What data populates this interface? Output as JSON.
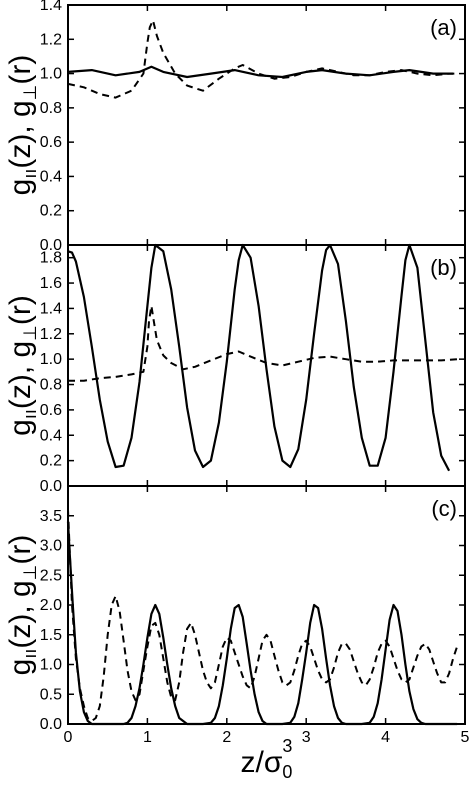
{
  "chart_data": {
    "type": "line",
    "x_axis": {
      "label_main": "z/σ",
      "label_sub": "0",
      "label_sup": "3",
      "range": [
        0,
        5
      ],
      "ticks": [
        "0",
        "1",
        "2",
        "3",
        "4",
        "5"
      ]
    },
    "y_axis_label": {
      "g_par": "g",
      "par_sub": "ıı",
      "z_part": "(z), g",
      "perp_sub": "⊥",
      "r_part": "(r)"
    },
    "panels": [
      {
        "label": "(a)",
        "ylim": [
          0,
          1.4
        ],
        "yticks": [
          "0.0",
          "0.2",
          "0.4",
          "0.6",
          "0.8",
          "1.0",
          "1.2",
          "1.4"
        ],
        "series": [
          {
            "style": "solid",
            "x": [
              0,
              0.3,
              0.6,
              0.9,
              1.05,
              1.2,
              1.5,
              1.8,
              2.1,
              2.4,
              2.7,
              3.0,
              3.2,
              3.5,
              3.8,
              4.1,
              4.3,
              4.6,
              4.85
            ],
            "y": [
              1.01,
              1.02,
              0.99,
              1.01,
              1.04,
              1.01,
              0.98,
              1.0,
              1.02,
              0.99,
              0.98,
              1.01,
              1.02,
              1.0,
              0.99,
              1.01,
              1.02,
              1.0,
              1.0
            ]
          },
          {
            "style": "dashed",
            "x": [
              0,
              0.2,
              0.4,
              0.6,
              0.8,
              0.95,
              1.0,
              1.03,
              1.07,
              1.12,
              1.2,
              1.35,
              1.5,
              1.7,
              1.9,
              2.1,
              2.2,
              2.4,
              2.6,
              2.8,
              3.0,
              3.2,
              3.4,
              3.6,
              3.8,
              4.0,
              4.2,
              4.4,
              4.6,
              4.8,
              4.9
            ],
            "y": [
              0.94,
              0.92,
              0.88,
              0.86,
              0.9,
              1.0,
              1.18,
              1.27,
              1.31,
              1.22,
              1.12,
              1.0,
              0.93,
              0.9,
              0.97,
              1.03,
              1.05,
              1.0,
              0.97,
              0.98,
              1.01,
              1.03,
              1.01,
              0.99,
              0.99,
              1.01,
              1.02,
              1.0,
              0.99,
              1.0,
              1.0
            ]
          }
        ]
      },
      {
        "label": "(b)",
        "ylim": [
          0,
          1.9
        ],
        "yticks": [
          "0.0",
          "0.2",
          "0.4",
          "0.6",
          "0.8",
          "1.0",
          "1.2",
          "1.4",
          "1.6",
          "1.8"
        ],
        "series": [
          {
            "style": "solid",
            "x": [
              0,
              0.05,
              0.1,
              0.2,
              0.3,
              0.4,
              0.5,
              0.6,
              0.7,
              0.8,
              0.9,
              1.0,
              1.05,
              1.1,
              1.2,
              1.3,
              1.4,
              1.5,
              1.6,
              1.7,
              1.8,
              1.9,
              2.0,
              2.1,
              2.15,
              2.2,
              2.3,
              2.4,
              2.5,
              2.6,
              2.7,
              2.8,
              2.9,
              3.0,
              3.1,
              3.2,
              3.25,
              3.3,
              3.4,
              3.5,
              3.6,
              3.7,
              3.8,
              3.9,
              4.0,
              4.1,
              4.2,
              4.25,
              4.3,
              4.4,
              4.5,
              4.6,
              4.7,
              4.8
            ],
            "y": [
              1.85,
              1.84,
              1.77,
              1.49,
              1.1,
              0.68,
              0.35,
              0.15,
              0.16,
              0.38,
              0.82,
              1.42,
              1.72,
              1.9,
              1.85,
              1.55,
              1.1,
              0.62,
              0.28,
              0.15,
              0.2,
              0.5,
              0.98,
              1.55,
              1.78,
              1.9,
              1.8,
              1.42,
              0.92,
              0.47,
              0.2,
              0.15,
              0.29,
              0.68,
              1.2,
              1.7,
              1.86,
              1.9,
              1.75,
              1.3,
              0.78,
              0.38,
              0.16,
              0.16,
              0.38,
              0.9,
              1.5,
              1.78,
              1.9,
              1.72,
              1.15,
              0.58,
              0.24,
              0.12
            ]
          },
          {
            "style": "dashed",
            "x": [
              0,
              0.2,
              0.4,
              0.6,
              0.8,
              0.95,
              1.0,
              1.02,
              1.05,
              1.08,
              1.12,
              1.2,
              1.3,
              1.45,
              1.6,
              1.8,
              2.0,
              2.15,
              2.3,
              2.5,
              2.7,
              2.9,
              3.1,
              3.3,
              3.5,
              3.7,
              3.9,
              4.1,
              4.3,
              4.5,
              4.7,
              4.9
            ],
            "y": [
              0.83,
              0.83,
              0.85,
              0.86,
              0.88,
              0.9,
              1.1,
              1.3,
              1.42,
              1.3,
              1.15,
              1.03,
              0.97,
              0.92,
              0.94,
              0.99,
              1.04,
              1.06,
              1.02,
              0.97,
              0.95,
              0.98,
              1.01,
              1.02,
              1.0,
              0.98,
              0.98,
              0.99,
              0.99,
              0.99,
              0.99,
              1.0
            ]
          }
        ]
      },
      {
        "label": "(c)",
        "ylim": [
          0,
          4.0
        ],
        "yticks": [
          "0.0",
          "0.5",
          "1.0",
          "1.5",
          "2.0",
          "2.5",
          "3.0",
          "3.5"
        ],
        "series": [
          {
            "style": "solid",
            "x": [
              0,
              0.02,
              0.06,
              0.1,
              0.15,
              0.2,
              0.25,
              0.3,
              0.35,
              0.4,
              0.5,
              0.6,
              0.7,
              0.75,
              0.8,
              0.85,
              0.9,
              0.95,
              1.0,
              1.05,
              1.1,
              1.15,
              1.2,
              1.25,
              1.3,
              1.35,
              1.4,
              1.5,
              1.6,
              1.7,
              1.8,
              1.85,
              1.9,
              1.95,
              2.0,
              2.05,
              2.1,
              2.15,
              2.2,
              2.25,
              2.3,
              2.35,
              2.4,
              2.45,
              2.5,
              2.6,
              2.7,
              2.8,
              2.85,
              2.9,
              2.95,
              3.0,
              3.05,
              3.1,
              3.15,
              3.2,
              3.25,
              3.3,
              3.35,
              3.4,
              3.45,
              3.5,
              3.6,
              3.7,
              3.8,
              3.85,
              3.9,
              3.95,
              4.0,
              4.05,
              4.1,
              4.15,
              4.2,
              4.25,
              4.3,
              4.35,
              4.4,
              4.45,
              4.5,
              4.6,
              4.8,
              4.9
            ],
            "y": [
              3.4,
              2.9,
              2.0,
              1.2,
              0.55,
              0.2,
              0.05,
              0.0,
              0.0,
              0.0,
              0.0,
              0.0,
              0.0,
              0.02,
              0.1,
              0.3,
              0.6,
              1.0,
              1.45,
              1.85,
              2.0,
              1.85,
              1.45,
              1.0,
              0.6,
              0.3,
              0.1,
              0.0,
              0.0,
              0.0,
              0.02,
              0.1,
              0.3,
              0.65,
              1.1,
              1.6,
              1.95,
              2.0,
              1.8,
              1.35,
              0.9,
              0.5,
              0.2,
              0.05,
              0.0,
              0.0,
              0.0,
              0.02,
              0.12,
              0.35,
              0.75,
              1.2,
              1.7,
              2.0,
              1.95,
              1.6,
              1.1,
              0.65,
              0.3,
              0.1,
              0.02,
              0.0,
              0.0,
              0.0,
              0.02,
              0.12,
              0.35,
              0.75,
              1.25,
              1.75,
              2.0,
              1.9,
              1.5,
              1.0,
              0.55,
              0.25,
              0.08,
              0.02,
              0.0,
              0.0,
              0.0,
              0.0
            ]
          },
          {
            "style": "dashed",
            "x": [
              0,
              0.05,
              0.1,
              0.15,
              0.2,
              0.25,
              0.3,
              0.35,
              0.4,
              0.45,
              0.5,
              0.55,
              0.6,
              0.65,
              0.7,
              0.75,
              0.8,
              0.85,
              0.9,
              0.95,
              1.0,
              1.05,
              1.1,
              1.15,
              1.2,
              1.25,
              1.3,
              1.35,
              1.4,
              1.45,
              1.5,
              1.55,
              1.6,
              1.65,
              1.7,
              1.75,
              1.8,
              1.85,
              1.9,
              1.95,
              2.0,
              2.05,
              2.1,
              2.15,
              2.2,
              2.25,
              2.3,
              2.35,
              2.4,
              2.45,
              2.5,
              2.55,
              2.6,
              2.65,
              2.7,
              2.75,
              2.8,
              2.85,
              2.9,
              2.95,
              3.0,
              3.05,
              3.1,
              3.15,
              3.2,
              3.25,
              3.3,
              3.35,
              3.4,
              3.45,
              3.5,
              3.55,
              3.6,
              3.65,
              3.7,
              3.75,
              3.8,
              3.85,
              3.9,
              3.95,
              4.0,
              4.05,
              4.1,
              4.15,
              4.2,
              4.25,
              4.3,
              4.35,
              4.4,
              4.45,
              4.5,
              4.55,
              4.6,
              4.65,
              4.7,
              4.75,
              4.8,
              4.85,
              4.9
            ],
            "y": [
              3.6,
              2.0,
              1.1,
              0.6,
              0.3,
              0.1,
              0.05,
              0.1,
              0.3,
              0.8,
              1.5,
              2.0,
              2.15,
              1.9,
              1.4,
              0.9,
              0.55,
              0.4,
              0.5,
              0.9,
              1.3,
              1.65,
              1.7,
              1.5,
              1.1,
              0.7,
              0.45,
              0.4,
              0.7,
              1.2,
              1.6,
              1.7,
              1.5,
              1.2,
              0.9,
              0.7,
              0.6,
              0.7,
              1.0,
              1.3,
              1.45,
              1.4,
              1.2,
              1.0,
              0.8,
              0.65,
              0.6,
              0.8,
              1.1,
              1.4,
              1.5,
              1.4,
              1.15,
              0.9,
              0.7,
              0.65,
              0.7,
              0.9,
              1.15,
              1.35,
              1.4,
              1.3,
              1.1,
              0.9,
              0.75,
              0.7,
              0.75,
              0.95,
              1.2,
              1.35,
              1.35,
              1.25,
              1.05,
              0.85,
              0.7,
              0.65,
              0.75,
              0.95,
              1.2,
              1.35,
              1.4,
              1.3,
              1.1,
              0.9,
              0.75,
              0.7,
              0.75,
              0.95,
              1.15,
              1.3,
              1.35,
              1.25,
              1.05,
              0.85,
              0.7,
              0.7,
              0.85,
              1.1,
              1.3
            ]
          }
        ]
      }
    ]
  }
}
